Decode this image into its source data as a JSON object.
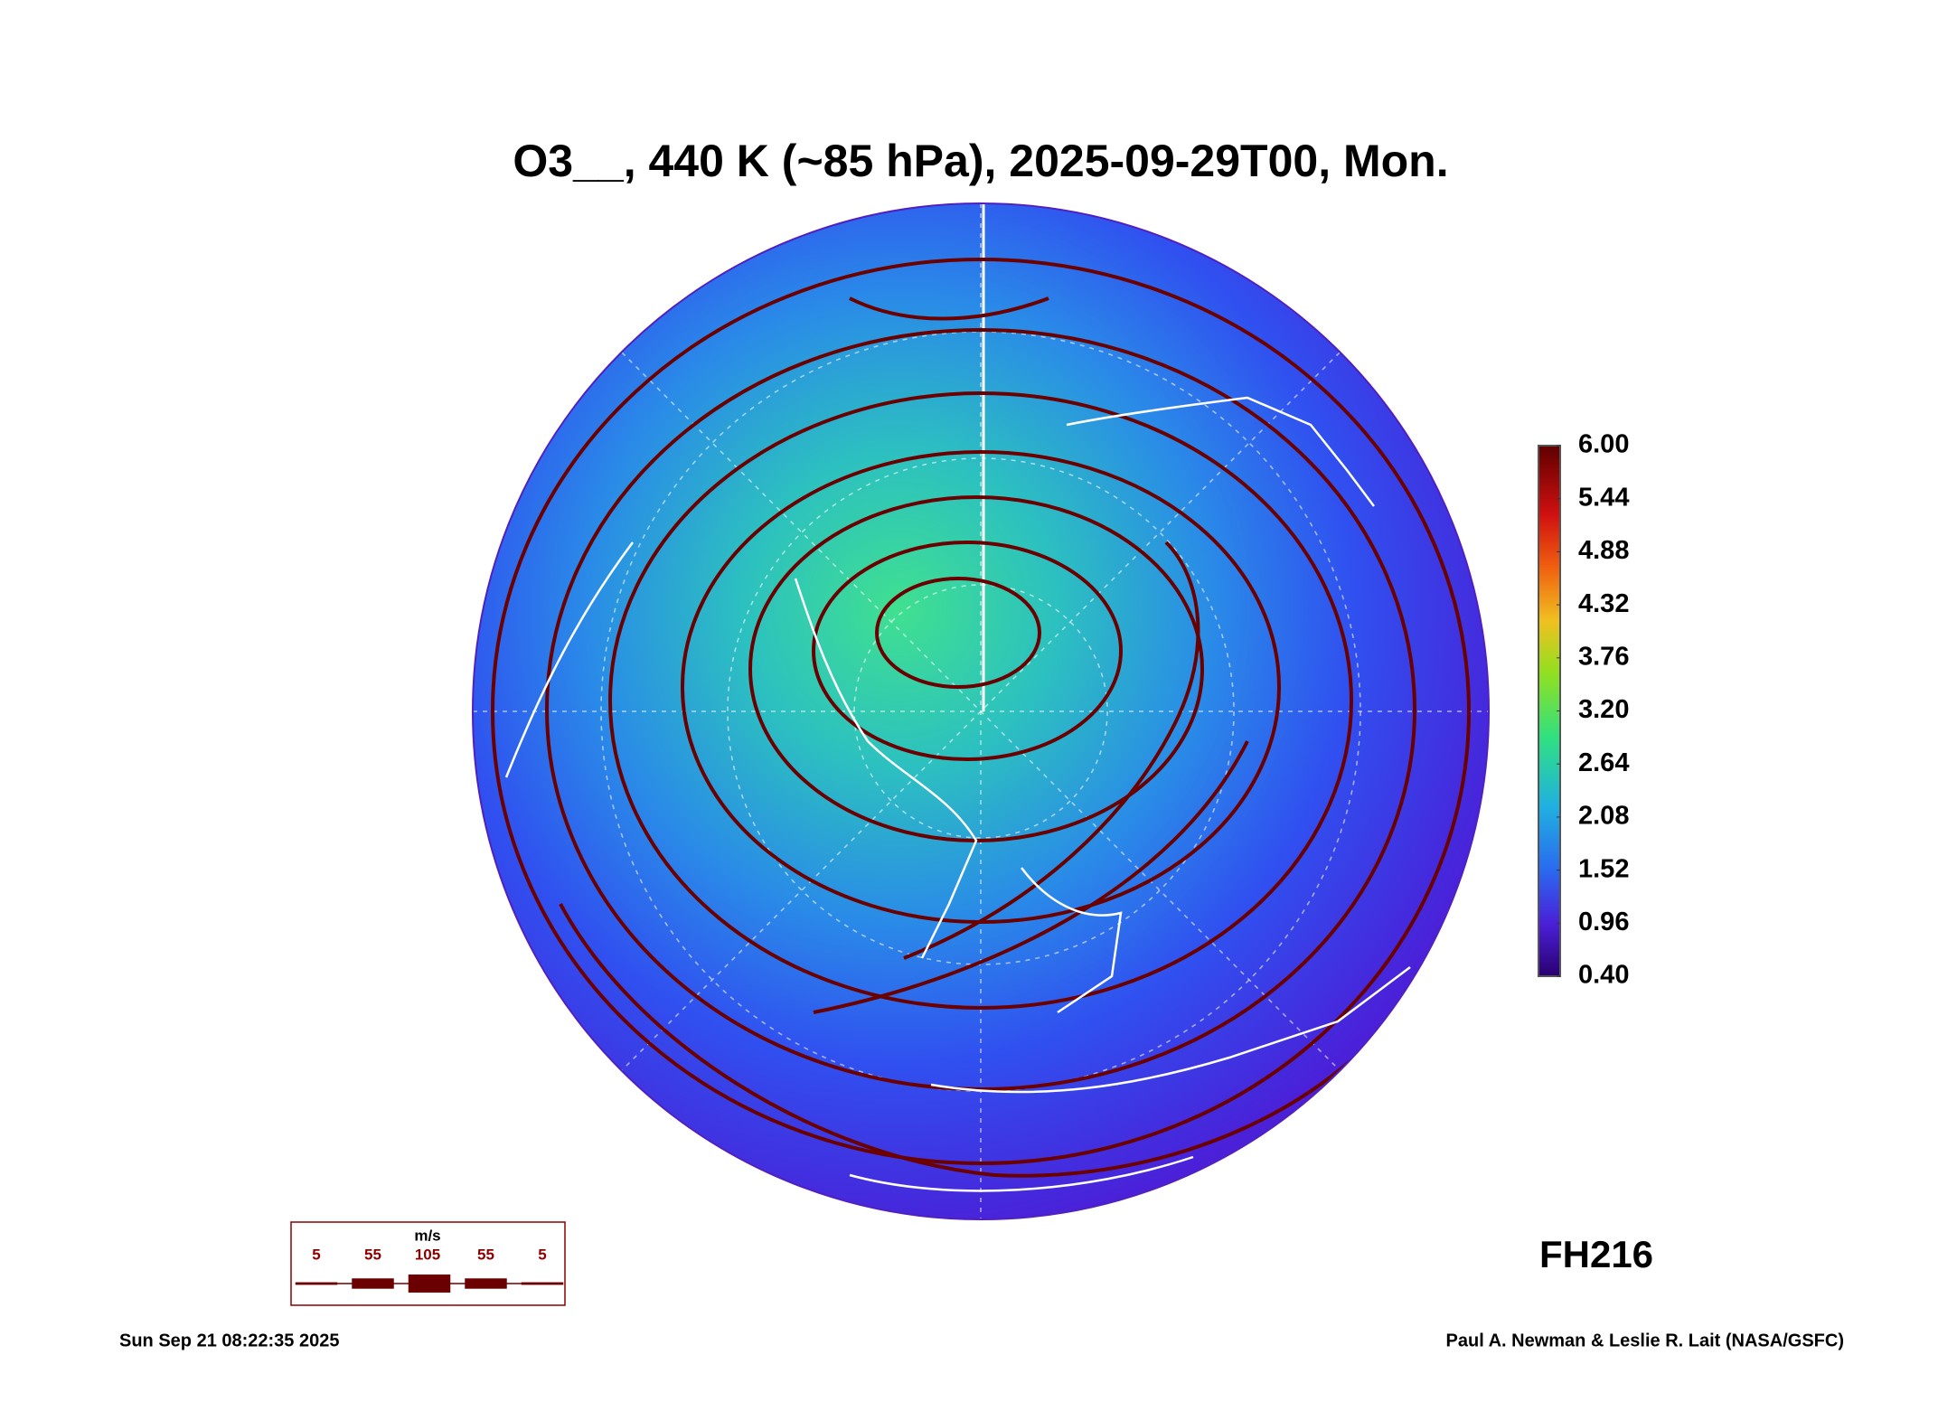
{
  "title": "O3__, 440 K (~85 hPa), 2025-09-29T00, Mon.",
  "colorbar": {
    "ticks": [
      {
        "value": 0.4,
        "label": "0.40"
      },
      {
        "value": 0.96,
        "label": "0.96"
      },
      {
        "value": 1.52,
        "label": "1.52"
      },
      {
        "value": 2.08,
        "label": "2.08"
      },
      {
        "value": 2.64,
        "label": "2.64"
      },
      {
        "value": 3.2,
        "label": "3.20"
      },
      {
        "value": 3.76,
        "label": "3.76"
      },
      {
        "value": 4.32,
        "label": "4.32"
      },
      {
        "value": 4.88,
        "label": "4.88"
      },
      {
        "value": 5.44,
        "label": "5.44"
      },
      {
        "value": 6,
        "label": "6.00"
      }
    ]
  },
  "wind_legend": {
    "unit": "m/s",
    "speeds": [
      5,
      55,
      105,
      55,
      5
    ]
  },
  "forecast_hour": "FH216",
  "timestamp": "Sun Sep 21 08:22:35 2025",
  "credit": "Paul A. Newman & Leslie R. Lait (NASA/GSFC)"
}
